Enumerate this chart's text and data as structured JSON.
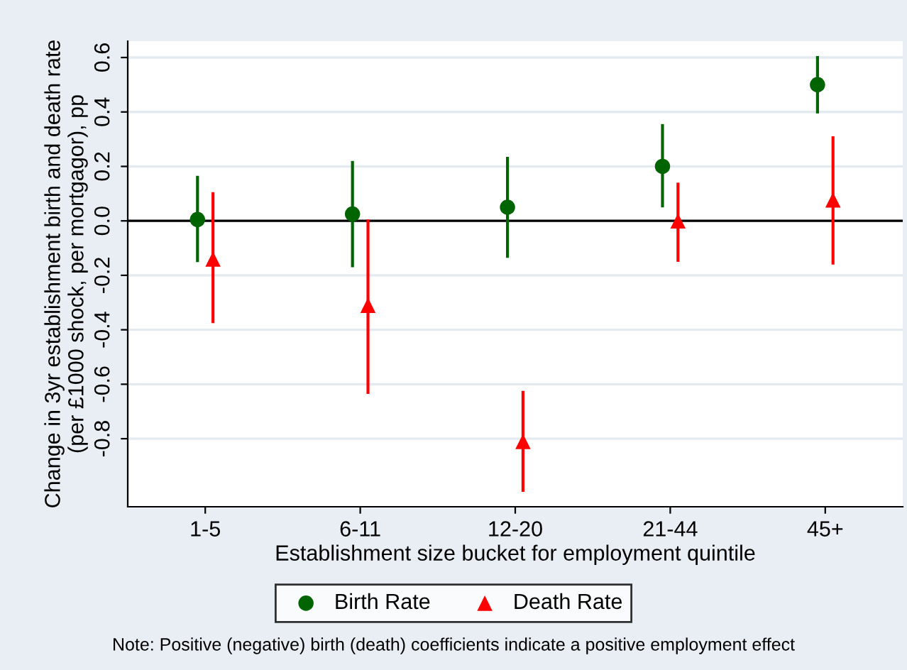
{
  "chart_data": {
    "type": "scatter",
    "xlabel": "Establishment size bucket for employment quintile",
    "ylabel": "Change in 3yr establishment birth and death rate\n(per £1000 shock, per mortgagor), pp",
    "categories": [
      "1-5",
      "6-11",
      "12-20",
      "21-44",
      "45+"
    ],
    "series": [
      {
        "name": "Birth Rate",
        "color": "#006400",
        "marker": "circle",
        "values": [
          0.005,
          0.025,
          0.05,
          0.2,
          0.5
        ],
        "errors": [
          [
            -0.146,
            0.16
          ],
          [
            -0.165,
            0.215
          ],
          [
            -0.13,
            0.23
          ],
          [
            0.055,
            0.35
          ],
          [
            0.4,
            0.6
          ]
        ]
      },
      {
        "name": "Death Rate",
        "color": "#ff0000",
        "marker": "triangle",
        "values": [
          -0.14,
          -0.31,
          -0.81,
          0.0,
          0.077
        ],
        "errors": [
          [
            -0.37,
            0.1
          ],
          [
            -0.63,
            0.0
          ],
          [
            -0.99,
            -0.63
          ],
          [
            -0.145,
            0.135
          ],
          [
            -0.155,
            0.305
          ]
        ]
      }
    ],
    "ylim": [
      -1.05,
      0.66
    ],
    "yticks": [
      -0.8,
      -0.6,
      -0.4,
      -0.2,
      {
        "value": 0,
        "label": "0.0"
      },
      0.2,
      0.4,
      0.6
    ],
    "ref_lines": [
      {
        "axis": "y",
        "value": 0,
        "color": "#000000"
      }
    ],
    "grid": "y",
    "legend": "bottom",
    "annotations": [
      "Note: Positive (negative) birth (death) coefficients indicate a positive employment effect"
    ]
  }
}
